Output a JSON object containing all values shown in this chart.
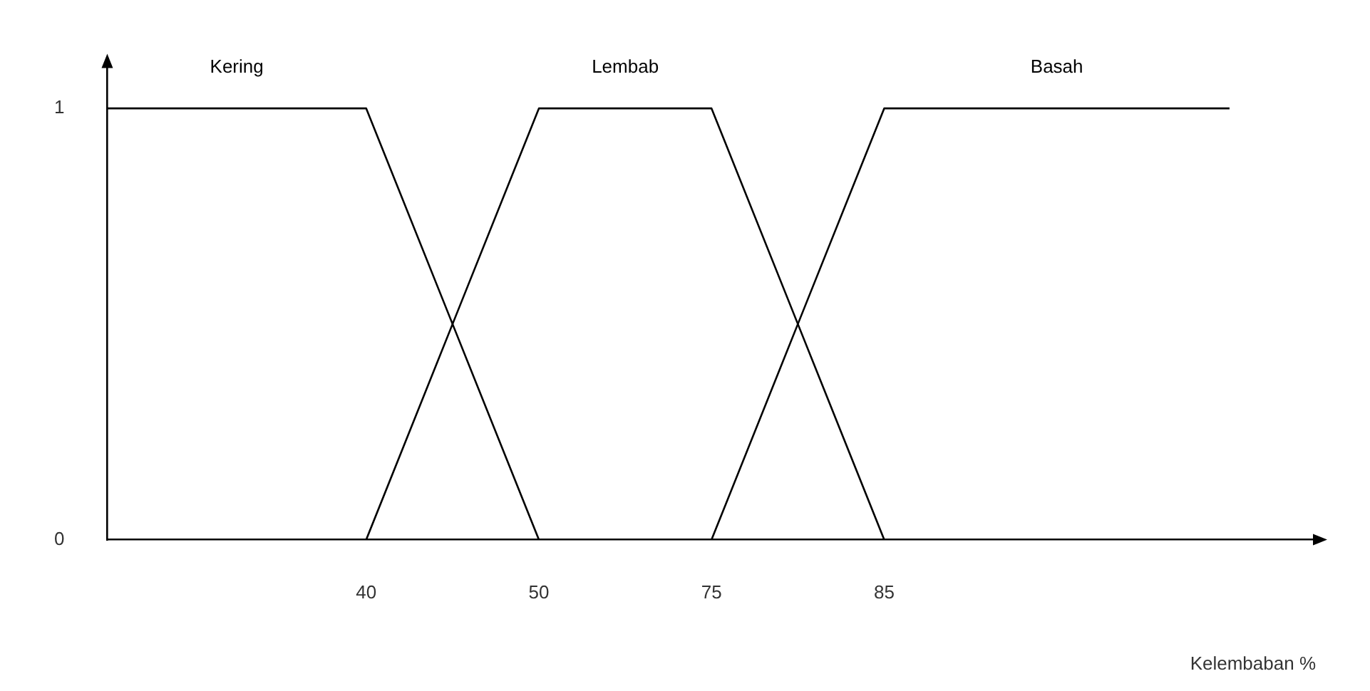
{
  "chart_data": {
    "type": "line",
    "xlabel": "Kelembaban %",
    "categories": [
      null,
      null,
      null,
      "40",
      null,
      "50",
      null,
      "75",
      null,
      "85",
      null,
      null,
      null,
      null,
      null
    ],
    "series": [
      {
        "name": "Kering",
        "color": "#000000",
        "values": [
          1,
          1,
          1,
          1,
          0.5,
          0,
          null,
          null,
          null,
          null,
          null,
          null,
          null,
          null,
          null
        ]
      },
      {
        "name": "Lembab",
        "color": "#000000",
        "values": [
          null,
          null,
          null,
          0,
          0.5,
          1,
          1,
          1,
          0.5,
          0,
          null,
          null,
          null,
          null,
          null
        ]
      },
      {
        "name": "Basah",
        "color": "#000000",
        "values": [
          null,
          null,
          null,
          null,
          null,
          null,
          null,
          0,
          0.5,
          1,
          1,
          1,
          1,
          1,
          null
        ]
      }
    ],
    "ylim": [
      0,
      1.1
    ],
    "yticks": [
      0,
      1
    ],
    "grid": false,
    "legend": false,
    "marker": "none",
    "line_style": "solid"
  }
}
